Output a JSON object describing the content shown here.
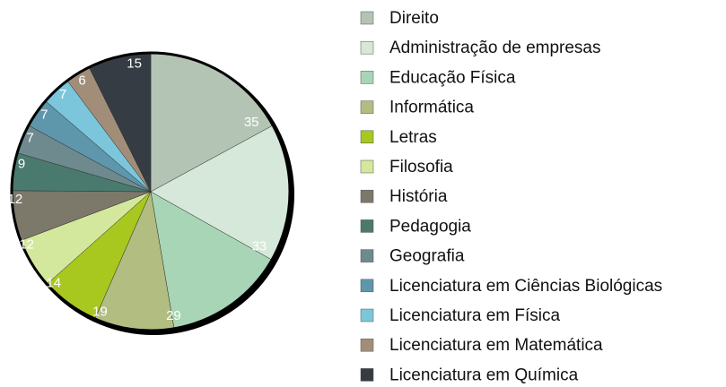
{
  "chart_data": {
    "type": "pie",
    "categories": [
      "Direito",
      "Administração de empresas",
      "Educação Física",
      "Informática",
      "Letras",
      "Filosofia",
      "História",
      "Pedagogia",
      "Geografia",
      "Licenciatura em Ciências Biológicas",
      "Licenciatura em Física",
      "Licenciatura em Matemática",
      "Licenciatura em Química"
    ],
    "values": [
      35,
      33,
      29,
      19,
      14,
      12,
      12,
      9,
      7,
      7,
      7,
      6,
      15
    ],
    "colors": [
      "#b3c4b5",
      "#d5e8da",
      "#a8d5b6",
      "#b2bd82",
      "#a8c820",
      "#d3e89c",
      "#7c786a",
      "#4a7a6e",
      "#6e8a8e",
      "#5e97ac",
      "#7cc6dc",
      "#a28e78",
      "#353c44"
    ],
    "legend": "right"
  }
}
